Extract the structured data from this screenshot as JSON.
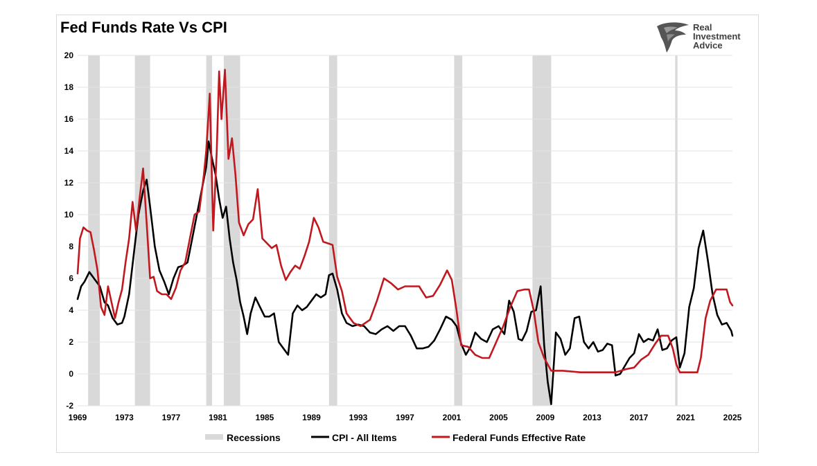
{
  "chart_data": {
    "type": "line",
    "title": "Fed Funds Rate Vs CPI",
    "xlabel": "",
    "ylabel": "",
    "xlim": [
      1969,
      2025
    ],
    "ylim": [
      -2,
      20
    ],
    "y_ticks": [
      -2,
      0,
      2,
      4,
      6,
      8,
      10,
      12,
      14,
      16,
      18,
      20
    ],
    "x_ticks": [
      1969,
      1973,
      1977,
      1981,
      1985,
      1989,
      1993,
      1997,
      2001,
      2005,
      2009,
      2013,
      2017,
      2021,
      2025
    ],
    "grid": true,
    "legend_position": "bottom",
    "recessions": [
      [
        1969.9,
        1970.9
      ],
      [
        1973.9,
        1975.2
      ],
      [
        1980.0,
        1980.5
      ],
      [
        1981.5,
        1982.9
      ],
      [
        1990.5,
        1991.2
      ],
      [
        2001.2,
        2001.9
      ],
      [
        2007.9,
        2009.5
      ],
      [
        2020.1,
        2020.3
      ]
    ],
    "series": [
      {
        "name": "Recessions",
        "kind": "band",
        "color": "#d9d9d9"
      },
      {
        "name": "CPI - All Items",
        "color": "#000000",
        "x": [
          1969.0,
          1969.3,
          1969.6,
          1970.0,
          1970.4,
          1970.9,
          1971.3,
          1971.6,
          1972.0,
          1972.4,
          1972.8,
          1973.0,
          1973.4,
          1973.8,
          1974.2,
          1974.6,
          1974.9,
          1975.2,
          1975.6,
          1976.0,
          1976.4,
          1976.8,
          1977.2,
          1977.6,
          1978.0,
          1978.4,
          1978.8,
          1979.2,
          1979.6,
          1980.0,
          1980.2,
          1980.5,
          1980.8,
          1981.1,
          1981.4,
          1981.7,
          1982.0,
          1982.3,
          1982.6,
          1982.9,
          1983.2,
          1983.5,
          1983.8,
          1984.2,
          1984.6,
          1985.0,
          1985.4,
          1985.8,
          1986.2,
          1986.6,
          1987.0,
          1987.4,
          1987.8,
          1988.2,
          1988.6,
          1989.0,
          1989.4,
          1989.8,
          1990.2,
          1990.5,
          1990.8,
          1991.2,
          1991.6,
          1992.0,
          1992.5,
          1993.0,
          1993.5,
          1994.0,
          1994.5,
          1995.0,
          1995.5,
          1996.0,
          1996.5,
          1997.0,
          1997.5,
          1998.0,
          1998.5,
          1999.0,
          1999.5,
          2000.0,
          2000.5,
          2001.0,
          2001.4,
          2001.8,
          2002.2,
          2002.6,
          2003.0,
          2003.5,
          2004.0,
          2004.5,
          2005.0,
          2005.5,
          2005.9,
          2006.3,
          2006.7,
          2007.0,
          2007.4,
          2007.8,
          2008.2,
          2008.6,
          2008.9,
          2009.2,
          2009.5,
          2009.9,
          2010.3,
          2010.7,
          2011.1,
          2011.5,
          2011.9,
          2012.3,
          2012.7,
          2013.1,
          2013.5,
          2013.9,
          2014.3,
          2014.7,
          2015.0,
          2015.4,
          2015.8,
          2016.2,
          2016.6,
          2017.0,
          2017.4,
          2017.8,
          2018.2,
          2018.6,
          2019.0,
          2019.4,
          2019.8,
          2020.2,
          2020.5,
          2020.9,
          2021.3,
          2021.7,
          2022.1,
          2022.5,
          2022.9,
          2023.3,
          2023.7,
          2024.1,
          2024.5,
          2024.9,
          2025.0
        ],
        "values": [
          4.7,
          5.5,
          5.8,
          6.4,
          6.0,
          5.5,
          4.5,
          4.3,
          3.5,
          3.1,
          3.2,
          3.6,
          5.0,
          7.5,
          10.0,
          11.5,
          12.2,
          10.5,
          8.0,
          6.5,
          5.8,
          5.0,
          6.0,
          6.7,
          6.8,
          7.0,
          8.5,
          10.0,
          11.5,
          13.0,
          14.6,
          13.5,
          12.5,
          11.0,
          9.8,
          10.5,
          8.5,
          7.0,
          5.9,
          4.5,
          3.6,
          2.5,
          3.8,
          4.8,
          4.2,
          3.6,
          3.6,
          3.8,
          2.0,
          1.6,
          1.2,
          3.8,
          4.3,
          4.0,
          4.2,
          4.6,
          5.0,
          4.8,
          5.0,
          6.2,
          6.3,
          5.3,
          3.8,
          3.2,
          3.0,
          3.1,
          3.0,
          2.6,
          2.5,
          2.8,
          3.0,
          2.7,
          3.0,
          3.0,
          2.4,
          1.6,
          1.6,
          1.7,
          2.1,
          2.8,
          3.6,
          3.4,
          3.0,
          1.9,
          1.2,
          1.7,
          2.6,
          2.2,
          2.0,
          2.8,
          3.0,
          2.5,
          4.6,
          3.9,
          2.2,
          2.1,
          2.7,
          3.9,
          4.0,
          5.5,
          1.8,
          -0.5,
          -1.9,
          2.6,
          2.2,
          1.2,
          1.6,
          3.5,
          3.6,
          2.0,
          1.6,
          2.0,
          1.4,
          1.5,
          1.9,
          1.8,
          -0.1,
          0.0,
          0.5,
          1.0,
          1.3,
          2.5,
          2.0,
          2.2,
          2.1,
          2.8,
          1.5,
          1.6,
          2.1,
          2.3,
          0.4,
          1.3,
          4.2,
          5.4,
          7.9,
          9.0,
          7.1,
          5.0,
          3.7,
          3.1,
          3.2,
          2.7,
          2.4
        ]
      },
      {
        "name": "Federal Funds Effective Rate",
        "color": "#c0181e",
        "x": [
          1969.0,
          1969.2,
          1969.5,
          1969.8,
          1970.1,
          1970.4,
          1970.7,
          1971.0,
          1971.3,
          1971.6,
          1971.9,
          1972.2,
          1972.5,
          1972.8,
          1973.1,
          1973.4,
          1973.7,
          1974.0,
          1974.3,
          1974.6,
          1974.9,
          1975.2,
          1975.5,
          1975.8,
          1976.2,
          1976.6,
          1977.0,
          1977.4,
          1977.8,
          1978.2,
          1978.6,
          1979.0,
          1979.4,
          1979.8,
          1980.0,
          1980.3,
          1980.6,
          1980.9,
          1981.1,
          1981.3,
          1981.6,
          1981.9,
          1982.2,
          1982.5,
          1982.8,
          1983.2,
          1983.6,
          1984.0,
          1984.4,
          1984.8,
          1985.2,
          1985.6,
          1986.0,
          1986.4,
          1986.8,
          1987.2,
          1987.6,
          1988.0,
          1988.4,
          1988.8,
          1989.2,
          1989.6,
          1990.0,
          1990.4,
          1990.8,
          1991.2,
          1991.6,
          1992.0,
          1992.6,
          1993.2,
          1994.0,
          1994.6,
          1995.2,
          1995.8,
          1996.4,
          1997.0,
          1997.6,
          1998.2,
          1998.8,
          1999.4,
          2000.0,
          2000.6,
          2001.0,
          2001.4,
          2001.8,
          2002.4,
          2003.0,
          2003.6,
          2004.2,
          2004.8,
          2005.4,
          2006.0,
          2006.6,
          2007.2,
          2007.6,
          2008.0,
          2008.4,
          2008.9,
          2009.5,
          2010.5,
          2012.0,
          2013.5,
          2015.0,
          2015.9,
          2016.6,
          2017.2,
          2017.8,
          2018.4,
          2018.9,
          2019.5,
          2019.9,
          2020.2,
          2020.5,
          2021.5,
          2022.0,
          2022.3,
          2022.7,
          2023.1,
          2023.6,
          2024.0,
          2024.5,
          2024.8,
          2025.0
        ],
        "values": [
          6.3,
          8.5,
          9.2,
          9.0,
          8.9,
          7.8,
          6.5,
          4.2,
          3.7,
          5.5,
          4.5,
          3.5,
          4.5,
          5.3,
          7.0,
          8.5,
          10.8,
          9.0,
          11.0,
          12.9,
          9.5,
          6.0,
          6.1,
          5.2,
          5.0,
          5.0,
          4.7,
          5.4,
          6.5,
          7.0,
          8.5,
          10.0,
          10.2,
          12.5,
          14.0,
          17.6,
          9.0,
          14.0,
          19.0,
          16.0,
          19.1,
          13.5,
          14.8,
          12.5,
          9.5,
          8.7,
          9.4,
          9.7,
          11.6,
          8.5,
          8.2,
          7.9,
          8.1,
          6.8,
          5.9,
          6.4,
          6.8,
          6.6,
          7.4,
          8.3,
          9.8,
          9.2,
          8.3,
          8.2,
          8.1,
          6.1,
          5.2,
          3.8,
          3.2,
          3.0,
          3.4,
          4.6,
          6.0,
          5.7,
          5.3,
          5.5,
          5.5,
          5.5,
          4.8,
          4.9,
          5.6,
          6.5,
          5.9,
          4.0,
          1.8,
          1.7,
          1.2,
          1.0,
          1.0,
          2.0,
          3.0,
          4.2,
          5.2,
          5.3,
          5.3,
          4.0,
          2.0,
          1.0,
          0.2,
          0.2,
          0.1,
          0.1,
          0.1,
          0.3,
          0.4,
          0.9,
          1.2,
          1.9,
          2.4,
          2.4,
          1.6,
          0.6,
          0.1,
          0.1,
          0.1,
          1.0,
          3.5,
          4.6,
          5.3,
          5.3,
          5.3,
          4.5,
          4.3
        ]
      }
    ]
  },
  "brand": {
    "line1": "Real",
    "line2": "Investment",
    "line3": "Advice"
  },
  "legend": {
    "recessions": "Recessions",
    "cpi": "CPI - All Items",
    "fed": "Federal Funds Effective Rate"
  }
}
